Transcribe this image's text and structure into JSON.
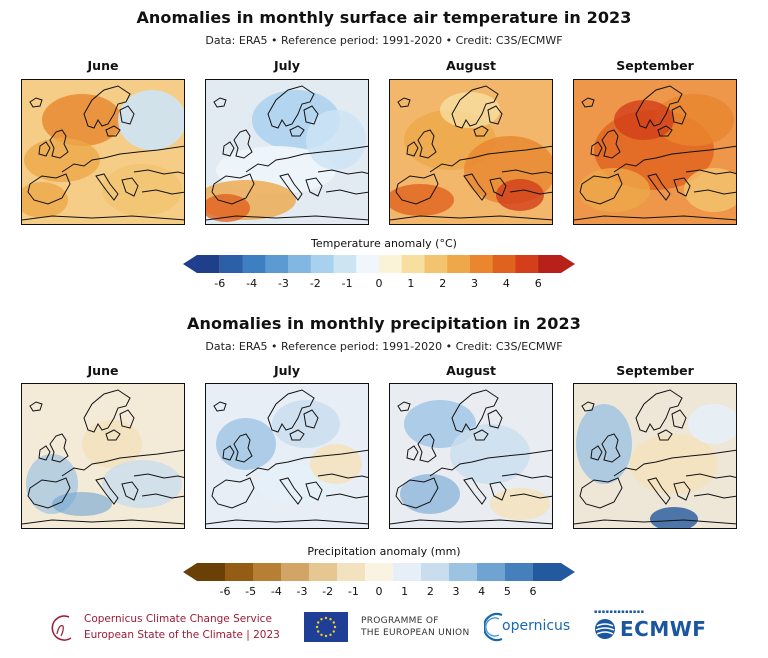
{
  "temperature": {
    "title": "Anomalies in monthly surface air temperature in 2023",
    "subtitle": "Data: ERA5 • Reference period: 1991-2020 • Credit: C3S/ECMWF",
    "months": [
      "June",
      "July",
      "August",
      "September"
    ],
    "colorbar": {
      "title": "Temperature anomaly (°C)",
      "ticks": [
        "-6",
        "-4",
        "-3",
        "-2",
        "-1",
        "0",
        "1",
        "2",
        "3",
        "4",
        "6"
      ],
      "colors": [
        "#1f3f8a",
        "#2b5fa6",
        "#3e7fbf",
        "#5c9ad2",
        "#82b7e2",
        "#a9d0ee",
        "#cde4f5",
        "#f0f6fb",
        "#fbf3d8",
        "#f7dfa0",
        "#f3c470",
        "#eea749",
        "#e9862e",
        "#e0621f",
        "#d23f1a",
        "#b8201a"
      ]
    },
    "tints": [
      "#f6cd86",
      "#e2eaf2",
      "#f2b76a",
      "#ee9649"
    ]
  },
  "precipitation": {
    "title": "Anomalies in monthly precipitation in 2023",
    "subtitle": "Data: ERA5 • Reference period: 1991-2020 • Credit: C3S/ECMWF",
    "months": [
      "June",
      "July",
      "August",
      "September"
    ],
    "colorbar": {
      "title": "Precipitation anomaly (mm)",
      "ticks": [
        "-6",
        "-5",
        "-4",
        "-3",
        "-2",
        "-1",
        "0",
        "1",
        "2",
        "3",
        "4",
        "5",
        "6"
      ],
      "colors": [
        "#6b4007",
        "#955c16",
        "#b77f33",
        "#d2a566",
        "#e6c792",
        "#f3e2bf",
        "#faf3e2",
        "#e6eff8",
        "#c9ddef",
        "#9dc3e3",
        "#6fa3d2",
        "#4580bd",
        "#23599e"
      ]
    },
    "tints": [
      "#f3ead8",
      "#e7eef5",
      "#e9edf2",
      "#eee7d8"
    ]
  },
  "logos": {
    "c3s_line1": "Copernicus Climate Change Service",
    "c3s_line2": "European State of the Climate | 2023",
    "eu_line1": "PROGRAMME OF",
    "eu_line2": "THE EUROPEAN UNION",
    "copernicus": "opernicus",
    "ecmwf": "ECMWF"
  }
}
